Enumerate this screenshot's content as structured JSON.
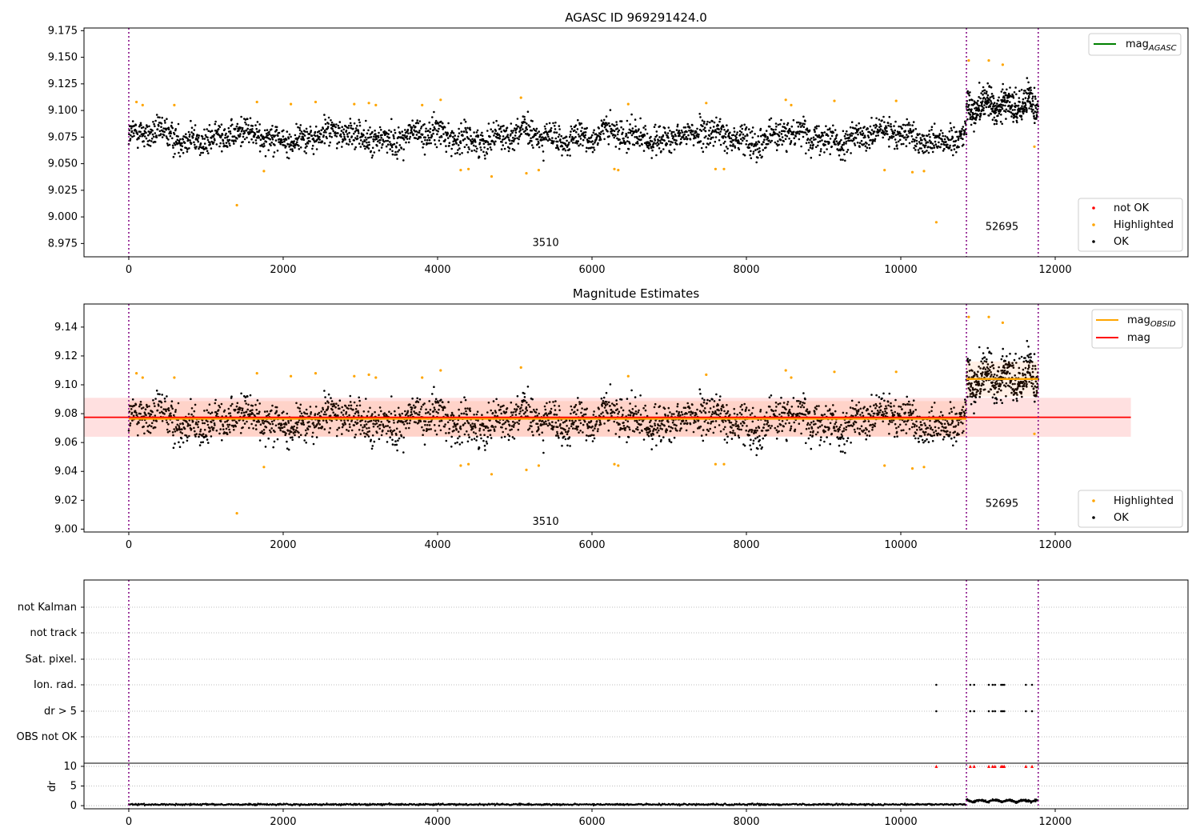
{
  "chart_data": [
    {
      "type": "scatter",
      "title": "AGASC ID 969291424.0",
      "xlim": [
        -580,
        13720
      ],
      "ylim": [
        8.9625,
        9.1775
      ],
      "xticks": [
        "0",
        "2000",
        "4000",
        "6000",
        "8000",
        "10000",
        "12000"
      ],
      "yticks": [
        "8.975",
        "9.000",
        "9.025",
        "9.050",
        "9.075",
        "9.100",
        "9.125",
        "9.150",
        "9.175"
      ],
      "obs_boundaries": [
        0,
        10850,
        11780
      ],
      "obs_labels": [
        {
          "text": "3510",
          "x": 5400,
          "y": 8.9725
        },
        {
          "text": "52695",
          "x": 11310,
          "y": 8.9875
        }
      ],
      "legend_lines": [
        {
          "label": "mag",
          "sub": "AGASC",
          "color": "#008000"
        }
      ],
      "legend_points": [
        {
          "label": "not OK",
          "color": "#ff0000"
        },
        {
          "label": "Highlighted",
          "color": "#ffa500"
        },
        {
          "label": "OK",
          "color": "#000000"
        }
      ],
      "series": [
        {
          "name": "OK",
          "description": "dense black points, obs 3510 centered ~9.075 (+/-0.02), obs 52695 centered ~9.105 (+/-0.025)"
        },
        {
          "name": "Highlighted",
          "points": [
            [
              100,
              9.108
            ],
            [
              180,
              9.105
            ],
            [
              590,
              9.105
            ],
            [
              1400,
              9.011
            ],
            [
              1660,
              9.108
            ],
            [
              1750,
              9.043
            ],
            [
              2100,
              9.106
            ],
            [
              2420,
              9.108
            ],
            [
              2920,
              9.106
            ],
            [
              3110,
              9.107
            ],
            [
              3200,
              9.105
            ],
            [
              3800,
              9.105
            ],
            [
              4040,
              9.11
            ],
            [
              4300,
              9.044
            ],
            [
              4400,
              9.045
            ],
            [
              4700,
              9.038
            ],
            [
              5080,
              9.112
            ],
            [
              5150,
              9.041
            ],
            [
              5310,
              9.044
            ],
            [
              6290,
              9.045
            ],
            [
              6340,
              9.044
            ],
            [
              6470,
              9.106
            ],
            [
              7480,
              9.107
            ],
            [
              7600,
              9.045
            ],
            [
              7710,
              9.045
            ],
            [
              8510,
              9.11
            ],
            [
              8580,
              9.105
            ],
            [
              9140,
              9.109
            ],
            [
              9790,
              9.044
            ],
            [
              9940,
              9.109
            ],
            [
              10150,
              9.042
            ],
            [
              10300,
              9.043
            ],
            [
              10460,
              8.995
            ],
            [
              10880,
              9.147
            ],
            [
              11140,
              9.147
            ],
            [
              11320,
              9.143
            ],
            [
              11730,
              9.066
            ]
          ]
        }
      ]
    },
    {
      "type": "scatter",
      "title": "Magnitude Estimates",
      "xlim": [
        -580,
        13720
      ],
      "ylim": [
        8.998,
        9.156
      ],
      "xticks": [
        "0",
        "2000",
        "4000",
        "6000",
        "8000",
        "10000",
        "12000"
      ],
      "yticks": [
        "9.00",
        "9.02",
        "9.04",
        "9.06",
        "9.08",
        "9.10",
        "9.12",
        "9.14"
      ],
      "obs_boundaries": [
        0,
        10850,
        11780
      ],
      "obs_labels": [
        {
          "text": "3510",
          "x": 5400,
          "y": 9.003
        },
        {
          "text": "52695",
          "x": 11310,
          "y": 9.0155
        }
      ],
      "mag_obsid": [
        {
          "x": [
            0,
            10850
          ],
          "y": 9.0765
        },
        {
          "x": [
            10850,
            11780
          ],
          "y": 9.104
        }
      ],
      "mag": {
        "x": [
          -580,
          12980
        ],
        "y": 9.0775,
        "band": [
          9.064,
          9.091
        ]
      },
      "legend_lines": [
        {
          "label": "mag",
          "sub": "OBSID",
          "color": "#ffa500"
        },
        {
          "label": "mag",
          "sub": "",
          "color": "#ff0000"
        }
      ],
      "legend_points": [
        {
          "label": "Highlighted",
          "color": "#ffa500"
        },
        {
          "label": "OK",
          "color": "#000000"
        }
      ]
    },
    {
      "type": "scatter",
      "xlim": [
        -580,
        13720
      ],
      "xticks": [
        "0",
        "2000",
        "4000",
        "6000",
        "8000",
        "10000",
        "12000"
      ],
      "flag_rows": [
        "not Kalman",
        "not track",
        "Sat. pixel.",
        "Ion. rad.",
        "dr > 5",
        "OBS not OK"
      ],
      "flag_points": [
        10460,
        10900,
        10950,
        11140,
        11190,
        11220,
        11300,
        11320,
        11340,
        11620,
        11700
      ],
      "dr": {
        "ylabel": "dr",
        "yticks": [
          "0",
          "5",
          "10"
        ],
        "ylim": [
          -0.8,
          10.8
        ],
        "typical": 0.3
      }
    }
  ]
}
